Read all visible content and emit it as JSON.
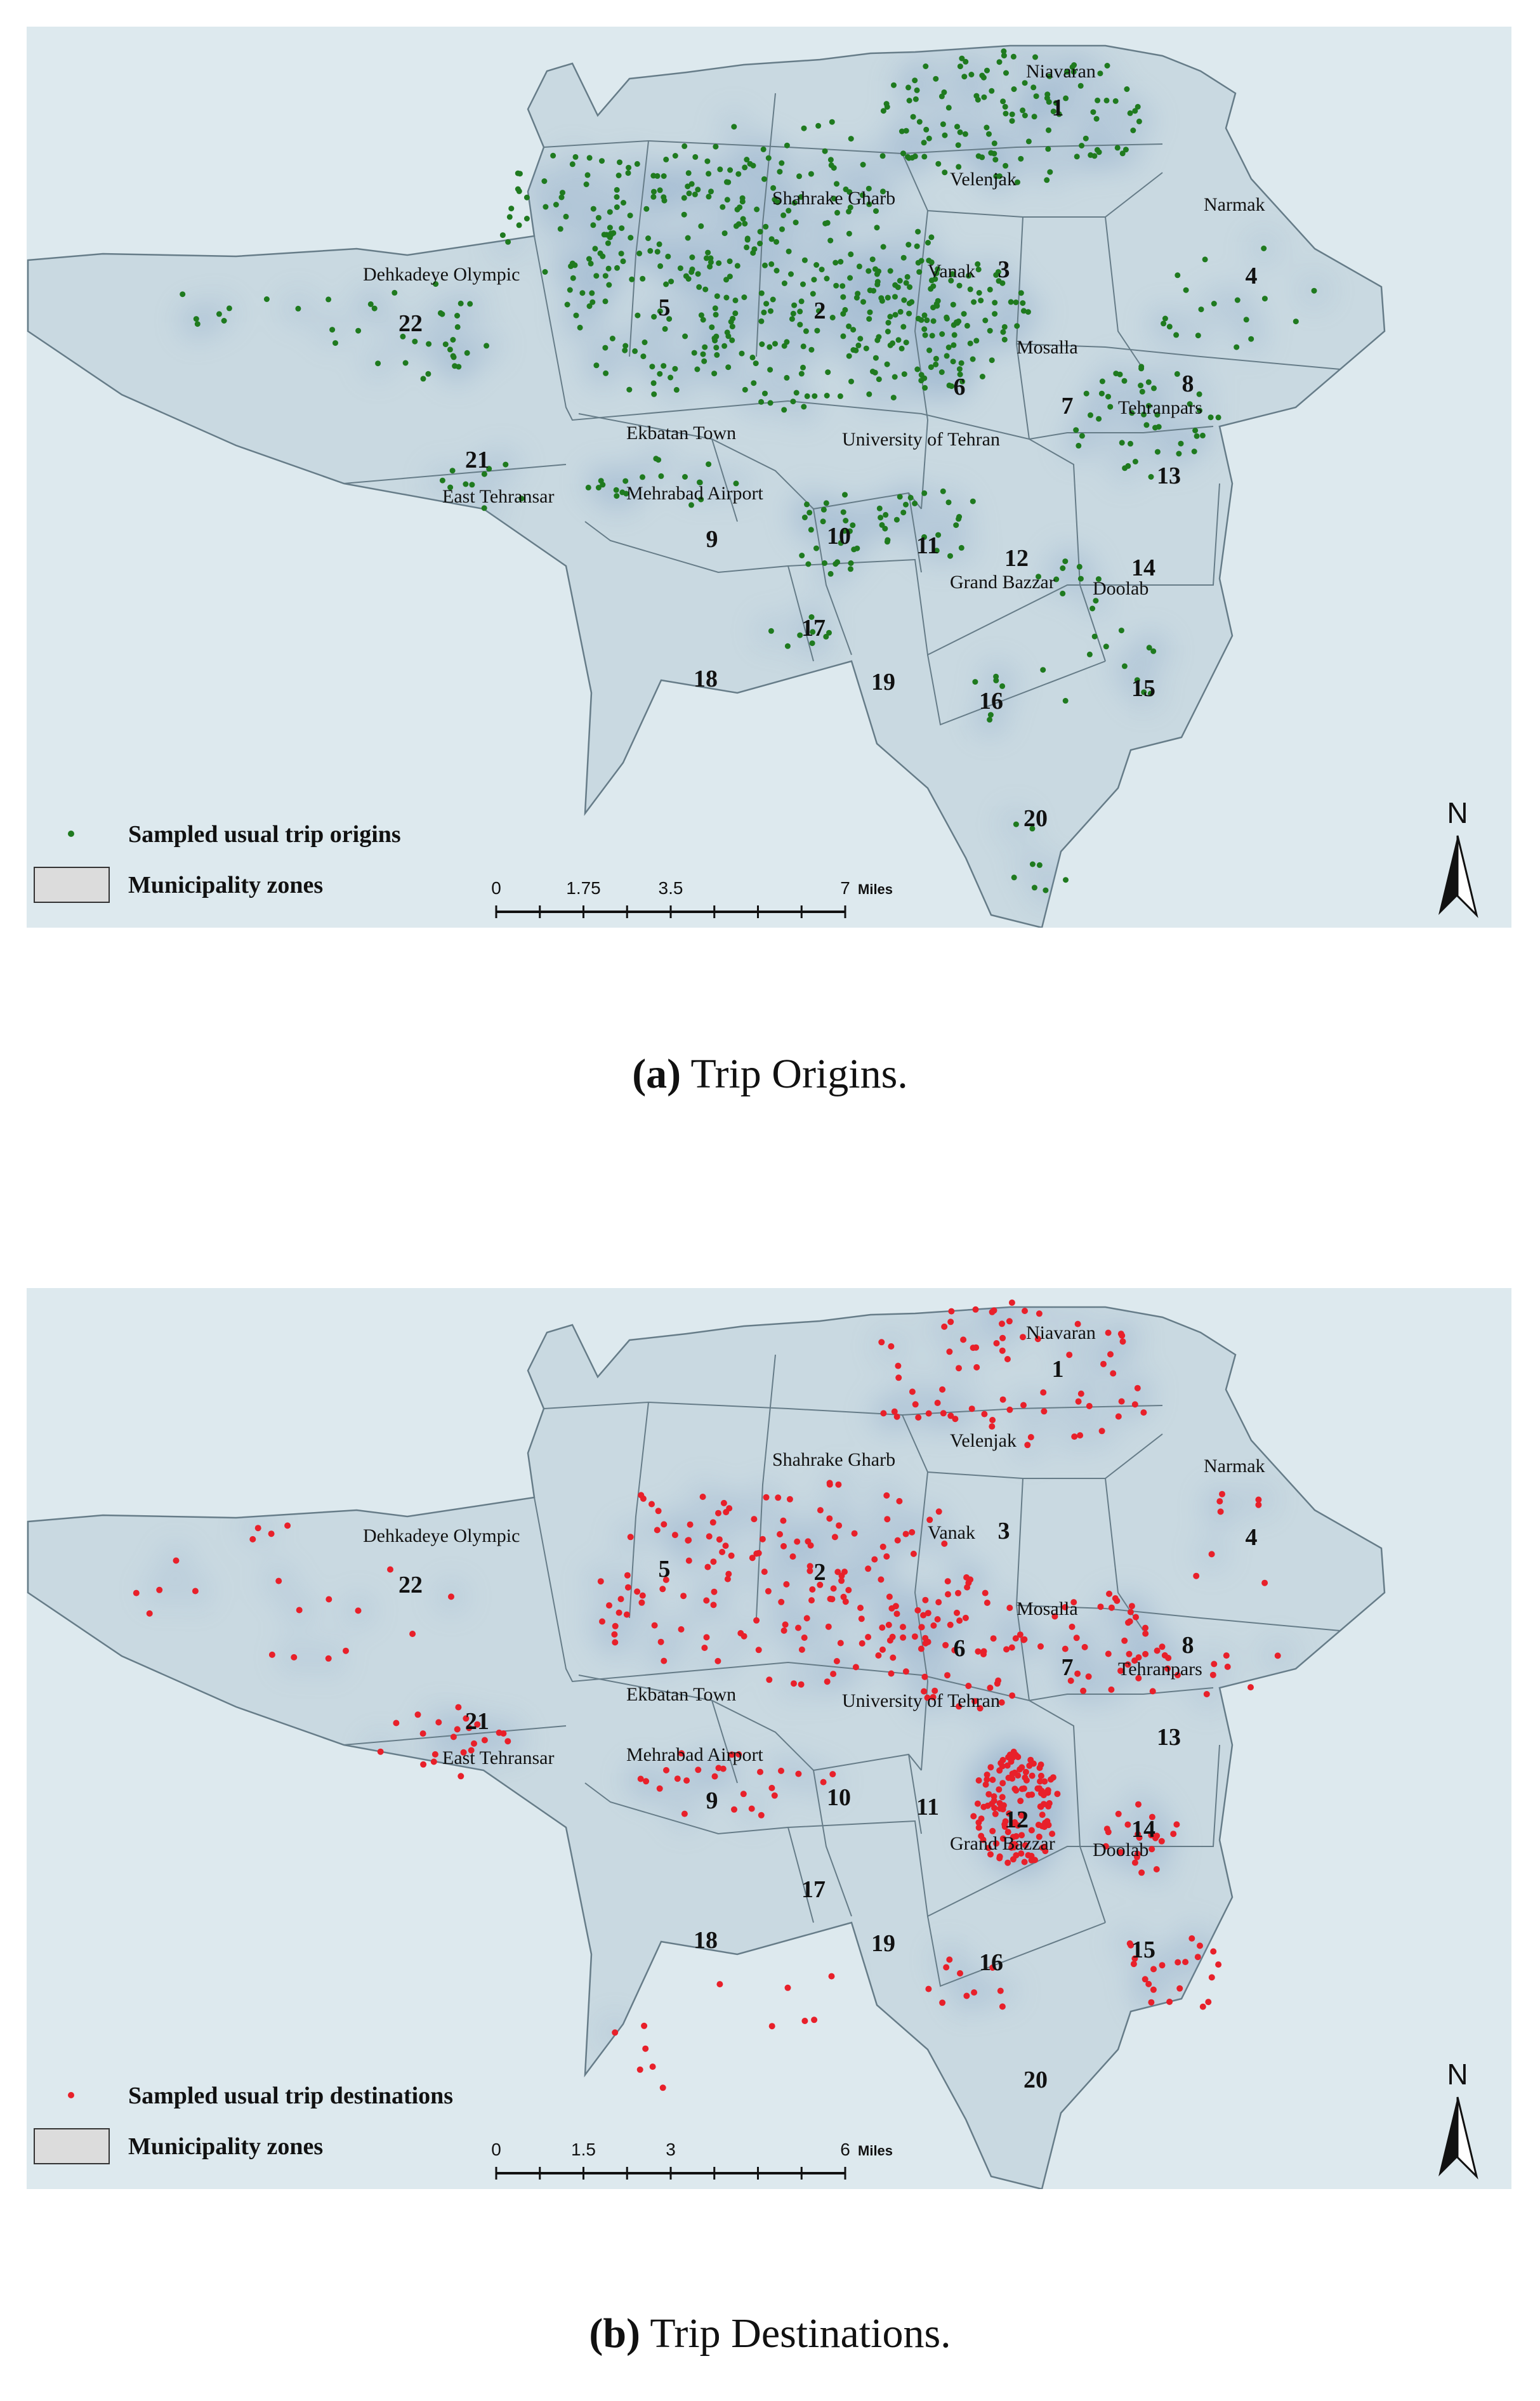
{
  "panels": [
    {
      "id": "a",
      "caption_label": "(a)",
      "caption_text": "Trip Origins.",
      "legend_points": "Sampled usual trip origins",
      "legend_zones": "Municipality zones",
      "point_color": "#1f7a1f",
      "scale_ticks": [
        "0",
        "1.75",
        "3.5",
        "7"
      ],
      "scale_unit": "Miles",
      "north": "N"
    },
    {
      "id": "b",
      "caption_label": "(b)",
      "caption_text": "Trip Destinations.",
      "legend_points": "Sampled usual trip destinations",
      "legend_zones": "Municipality zones",
      "point_color": "#e8202a",
      "scale_ticks": [
        "0",
        "1.5",
        "3",
        "6"
      ],
      "scale_unit": "Miles",
      "north": "N"
    }
  ],
  "zones": [
    "1",
    "2",
    "3",
    "4",
    "5",
    "6",
    "7",
    "8",
    "9",
    "10",
    "11",
    "12",
    "13",
    "14",
    "15",
    "16",
    "17",
    "18",
    "19",
    "20",
    "21",
    "22"
  ],
  "places": [
    "Niavaran",
    "Velenjak",
    "Shahrake Gharb",
    "Narmak",
    "Vanak",
    "Dehkadeye Olympic",
    "Mosalla",
    "Tehranpars",
    "Ekbatan Town",
    "University of Tehran",
    "East Tehransar",
    "Mehrabad Airport",
    "Grand Bazzar",
    "Doolab"
  ],
  "colors": {
    "background": "#dde9ee",
    "zone_fill": "#c9d9e1",
    "zone_stroke": "#667c88",
    "density": "#7f9fc2",
    "legend_box": "#dcdcdc"
  }
}
